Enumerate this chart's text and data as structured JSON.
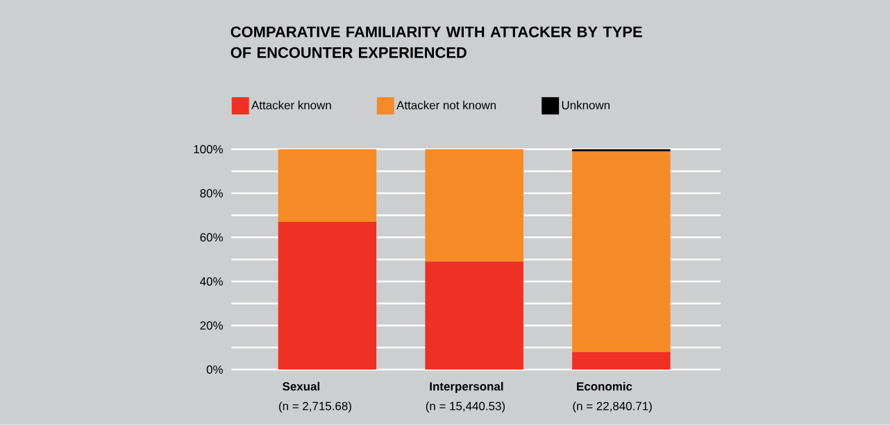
{
  "chart_data": {
    "type": "bar",
    "stacked": true,
    "title": "COMPARATIVE FAMILIARITY WITH ATTACKER BY TYPE OF ENCOUNTER EXPERIENCED",
    "categories": [
      "Sexual",
      "Interpersonal",
      "Economic"
    ],
    "annotations": [
      "(n = 2,715.68)",
      "(n = 15,440.53)",
      "(n = 22,840.71)"
    ],
    "series": [
      {
        "name": "Attacker known",
        "color": "#ee3124",
        "values": [
          67,
          49,
          8
        ]
      },
      {
        "name": "Attacker not known",
        "color": "#f58a27",
        "values": [
          33,
          51,
          91
        ]
      },
      {
        "name": "Unknown",
        "color": "#000000",
        "values": [
          null,
          null,
          1
        ]
      }
    ],
    "ylim": [
      0,
      100
    ],
    "yticks": [
      {
        "value": 0,
        "label": "0%"
      },
      {
        "value": 10,
        "label": null
      },
      {
        "value": 20,
        "label": "20%"
      },
      {
        "value": 30,
        "label": null
      },
      {
        "value": 40,
        "label": "40%"
      },
      {
        "value": 50,
        "label": null
      },
      {
        "value": 60,
        "label": "60%"
      },
      {
        "value": 70,
        "label": null
      },
      {
        "value": 80,
        "label": "80%"
      },
      {
        "value": 90,
        "label": null
      },
      {
        "value": 100,
        "label": "100%"
      }
    ],
    "grid": "y",
    "legend": "top left"
  }
}
